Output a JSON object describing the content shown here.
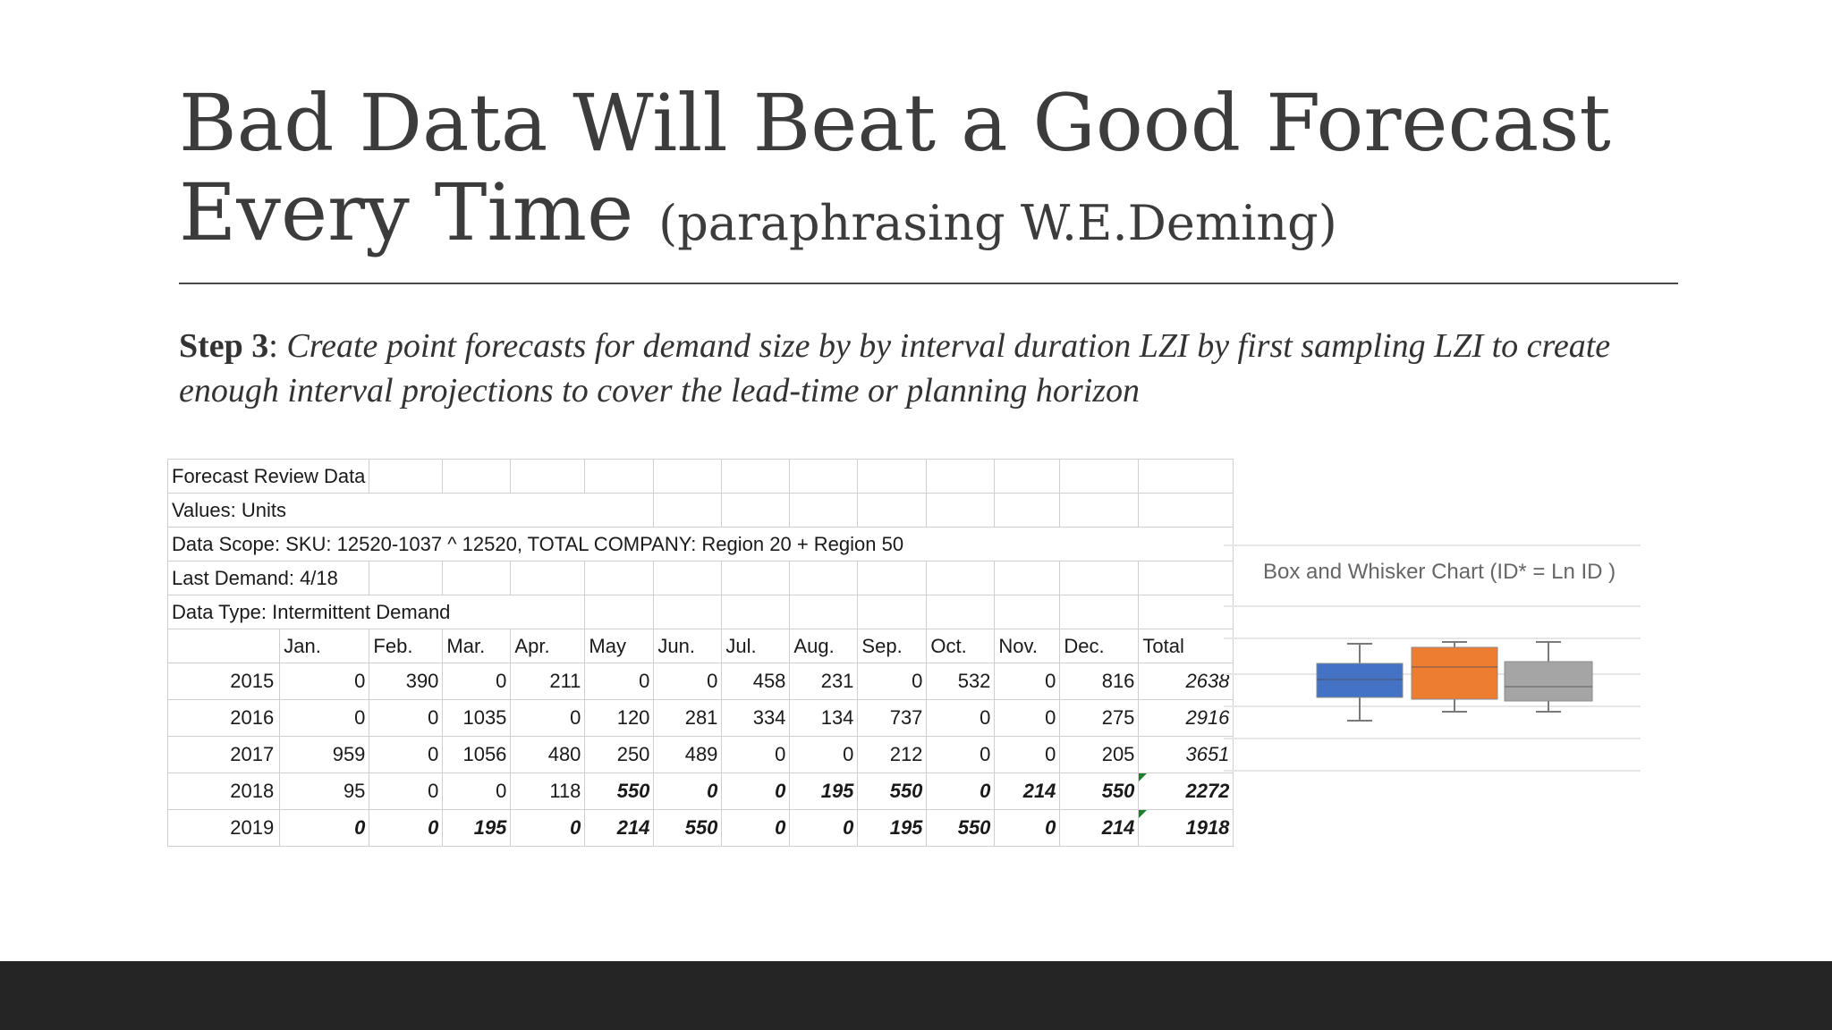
{
  "slide": {
    "title_main": "Bad Data Will Beat a Good Forecast Every Time",
    "title_sub": "(paraphrasing W.E.Deming)",
    "step_label": "Step 3",
    "step_sep": ": ",
    "step_text": "Create point forecasts for demand size by by interval duration LZI by first sampling LZI to create enough interval projections to cover the lead-time or planning horizon"
  },
  "sheet": {
    "info": [
      "Forecast Review Data",
      "Values: Units",
      "Data Scope: SKU: 12520-1037 ^ 12520, TOTAL COMPANY: Region 20 + Region 50",
      "Last Demand: 4/18",
      "Data Type: Intermittent Demand"
    ],
    "columns": [
      "Jan.",
      "Feb.",
      "Mar.",
      "Apr.",
      "May",
      "Jun.",
      "Jul.",
      "Aug.",
      "Sep.",
      "Oct.",
      "Nov.",
      "Dec.",
      "Total"
    ],
    "rows": [
      {
        "year": "2015",
        "values": [
          "0",
          "390",
          "0",
          "211",
          "0",
          "0",
          "458",
          "231",
          "0",
          "532",
          "0",
          "816"
        ],
        "total": "2638"
      },
      {
        "year": "2016",
        "values": [
          "0",
          "0",
          "1035",
          "0",
          "120",
          "281",
          "334",
          "134",
          "737",
          "0",
          "0",
          "275"
        ],
        "total": "2916"
      },
      {
        "year": "2017",
        "values": [
          "959",
          "0",
          "1056",
          "480",
          "250",
          "489",
          "0",
          "0",
          "212",
          "0",
          "0",
          "205"
        ],
        "total": "3651"
      },
      {
        "year": "2018",
        "values": [
          "95",
          "0",
          "0",
          "118",
          "550",
          "0",
          "0",
          "195",
          "550",
          "0",
          "214",
          "550"
        ],
        "total": "2272"
      },
      {
        "year": "2019",
        "values": [
          "0",
          "0",
          "195",
          "0",
          "214",
          "550",
          "0",
          "0",
          "195",
          "550",
          "0",
          "214"
        ],
        "total": "1918"
      }
    ]
  },
  "chart_data": {
    "type": "box",
    "title": "Box and Whisker Chart (ID* = Ln ID )",
    "series": [
      {
        "color": "#4472c4"
      },
      {
        "color": "#ed7d31"
      },
      {
        "color": "#a5a5a5"
      }
    ]
  }
}
